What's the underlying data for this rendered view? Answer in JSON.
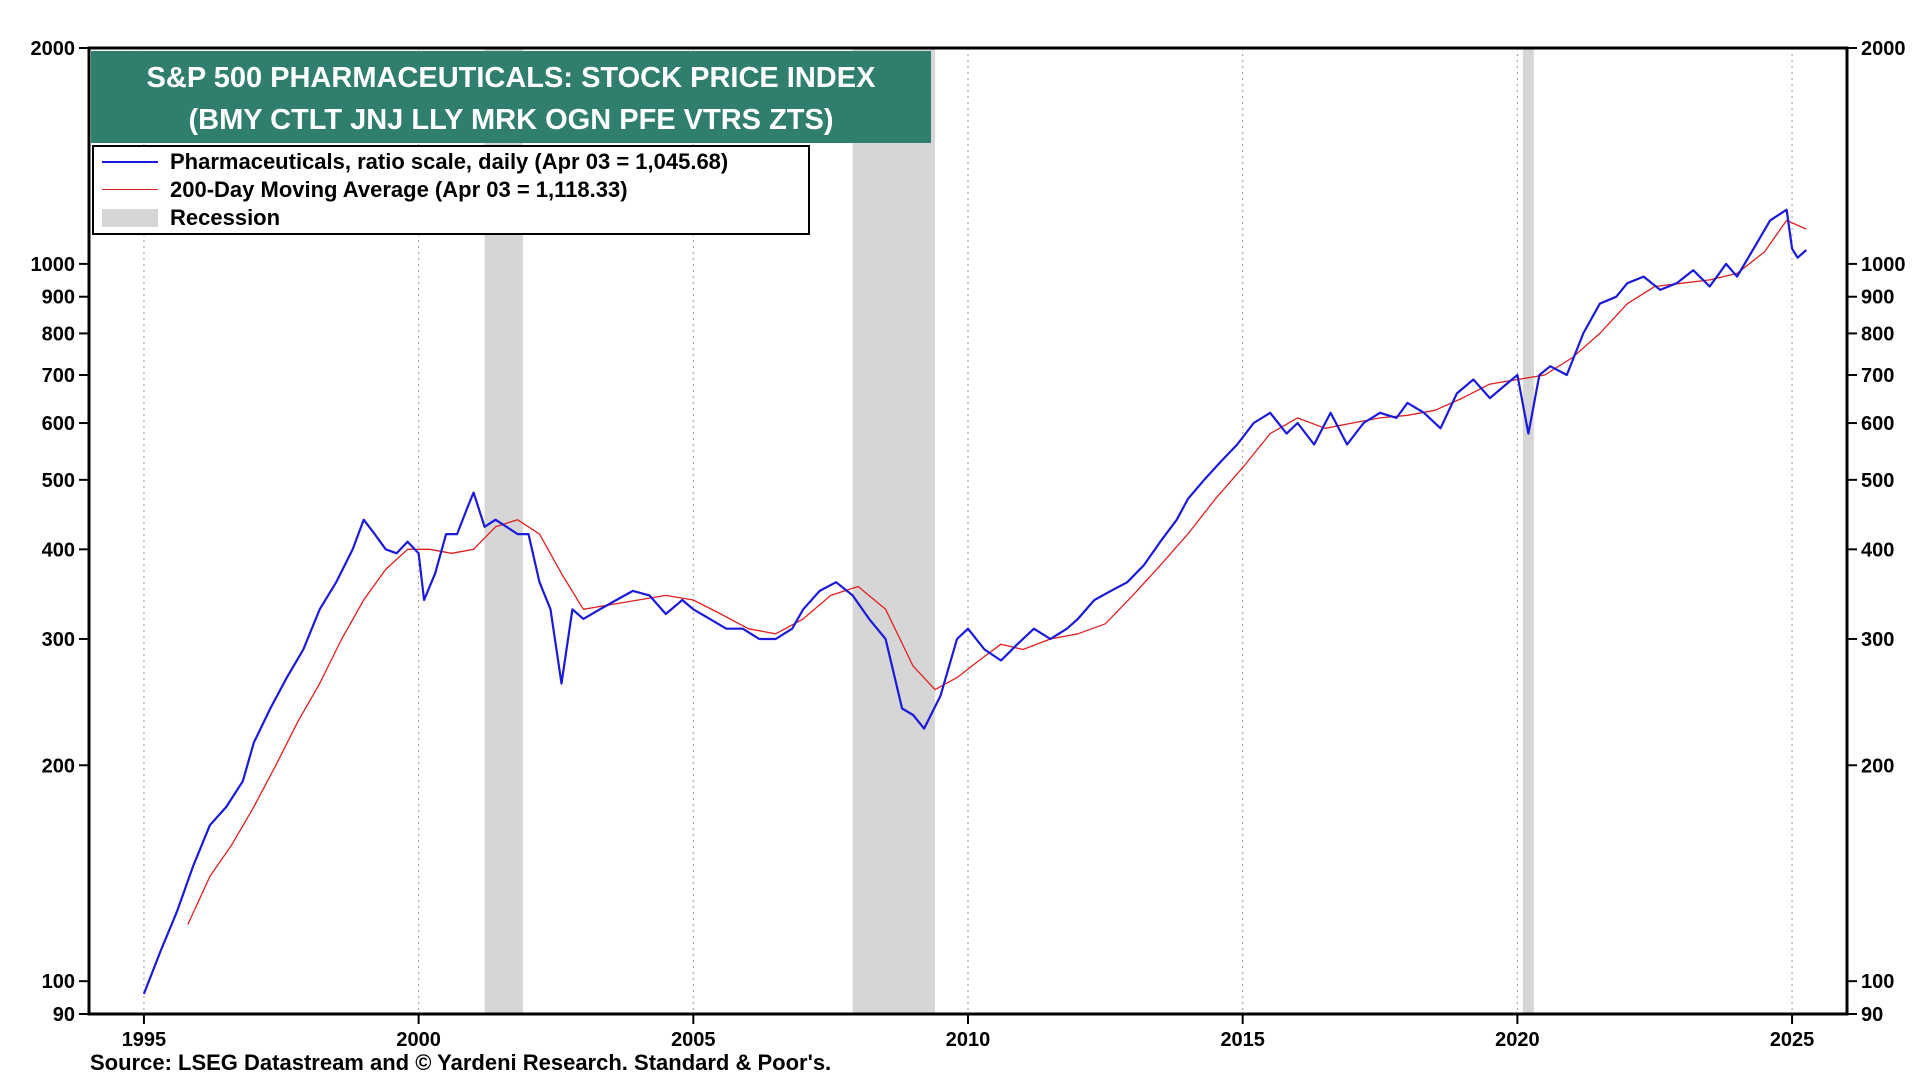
{
  "title_line1": "S&P 500 PHARMACEUTICALS: STOCK PRICE INDEX",
  "title_line2": "(BMY CTLT JNJ LLY MRK OGN PFE VTRS ZTS)",
  "source": "Source: LSEG Datastream and © Yardeni Research. Standard & Poor's.",
  "colors": {
    "title_bg": "#2f7e6e",
    "pharma": "#1a1adc",
    "ma": "#e02020",
    "recession": "#d6d6d6"
  },
  "chart_data": {
    "type": "line",
    "yscale": "log",
    "ylim": [
      90,
      2000
    ],
    "xlim": [
      1994.0,
      2026.0
    ],
    "y_ticks": [
      90,
      100,
      200,
      300,
      400,
      500,
      600,
      700,
      800,
      900,
      1000,
      2000
    ],
    "y_tick_labels": [
      "90",
      "100",
      "200",
      "300",
      "400",
      "500",
      "600",
      "700",
      "800",
      "900",
      "1000",
      "2000"
    ],
    "x_ticks": [
      1995,
      2000,
      2005,
      2010,
      2015,
      2020,
      2025
    ],
    "x_tick_labels": [
      "1995",
      "2000",
      "2005",
      "2010",
      "2015",
      "2020",
      "2025"
    ],
    "grid": "vertical dotted at x ticks",
    "legend": [
      "Pharmaceuticals, ratio scale, daily (Apr 03 = 1,045.68)",
      "200-Day Moving Average (Apr 03 = 1,118.33)",
      "Recession"
    ],
    "legend_placement": "top-left",
    "recessions": [
      [
        2001.2,
        2001.9
      ],
      [
        2007.9,
        2009.4
      ],
      [
        2020.1,
        2020.3
      ]
    ],
    "series": [
      {
        "name": "Pharmaceuticals, ratio scale, daily (Apr 03 = 1,045.68)",
        "x": [
          1995.0,
          1995.3,
          1995.6,
          1995.9,
          1996.2,
          1996.5,
          1996.8,
          1997.0,
          1997.3,
          1997.6,
          1997.9,
          1998.2,
          1998.5,
          1998.8,
          1999.0,
          1999.2,
          1999.4,
          1999.6,
          1999.8,
          2000.0,
          2000.1,
          2000.3,
          2000.5,
          2000.7,
          2000.9,
          2001.0,
          2001.2,
          2001.4,
          2001.6,
          2001.8,
          2002.0,
          2002.2,
          2002.4,
          2002.6,
          2002.8,
          2003.0,
          2003.3,
          2003.6,
          2003.9,
          2004.2,
          2004.5,
          2004.8,
          2005.0,
          2005.3,
          2005.6,
          2005.9,
          2006.2,
          2006.5,
          2006.8,
          2007.0,
          2007.3,
          2007.6,
          2007.9,
          2008.2,
          2008.5,
          2008.8,
          2009.0,
          2009.2,
          2009.5,
          2009.8,
          2010.0,
          2010.3,
          2010.6,
          2010.9,
          2011.2,
          2011.5,
          2011.8,
          2012.0,
          2012.3,
          2012.6,
          2012.9,
          2013.2,
          2013.5,
          2013.8,
          2014.0,
          2014.3,
          2014.6,
          2014.9,
          2015.2,
          2015.5,
          2015.8,
          2016.0,
          2016.3,
          2016.6,
          2016.9,
          2017.2,
          2017.5,
          2017.8,
          2018.0,
          2018.3,
          2018.6,
          2018.9,
          2019.2,
          2019.5,
          2019.8,
          2020.0,
          2020.2,
          2020.4,
          2020.6,
          2020.9,
          2021.2,
          2021.5,
          2021.8,
          2022.0,
          2022.3,
          2022.6,
          2022.9,
          2023.2,
          2023.5,
          2023.8,
          2024.0,
          2024.3,
          2024.6,
          2024.9,
          2025.0,
          2025.1,
          2025.26
        ],
        "values": [
          96,
          110,
          125,
          145,
          165,
          175,
          190,
          215,
          240,
          265,
          290,
          330,
          360,
          400,
          440,
          420,
          400,
          395,
          410,
          395,
          340,
          370,
          420,
          420,
          460,
          480,
          430,
          440,
          430,
          420,
          420,
          360,
          330,
          260,
          330,
          320,
          330,
          340,
          350,
          345,
          325,
          340,
          330,
          320,
          310,
          310,
          300,
          300,
          310,
          330,
          350,
          360,
          345,
          320,
          300,
          240,
          235,
          225,
          250,
          300,
          310,
          290,
          280,
          295,
          310,
          300,
          310,
          320,
          340,
          350,
          360,
          380,
          410,
          440,
          470,
          500,
          530,
          560,
          600,
          620,
          580,
          600,
          560,
          620,
          560,
          600,
          620,
          610,
          640,
          620,
          590,
          660,
          690,
          650,
          680,
          700,
          580,
          700,
          720,
          700,
          800,
          880,
          900,
          940,
          960,
          920,
          940,
          980,
          930,
          1000,
          960,
          1050,
          1150,
          1190,
          1050,
          1020,
          1045.68
        ]
      },
      {
        "name": "200-Day Moving Average (Apr 03 = 1,118.33)",
        "x": [
          1995.8,
          1996.2,
          1996.6,
          1997.0,
          1997.4,
          1997.8,
          1998.2,
          1998.6,
          1999.0,
          1999.4,
          1999.8,
          2000.2,
          2000.6,
          2001.0,
          2001.4,
          2001.8,
          2002.2,
          2002.6,
          2003.0,
          2003.5,
          2004.0,
          2004.5,
          2005.0,
          2005.5,
          2006.0,
          2006.5,
          2007.0,
          2007.5,
          2008.0,
          2008.5,
          2009.0,
          2009.4,
          2009.8,
          2010.2,
          2010.6,
          2011.0,
          2011.5,
          2012.0,
          2012.5,
          2013.0,
          2013.5,
          2014.0,
          2014.5,
          2015.0,
          2015.5,
          2016.0,
          2016.5,
          2017.0,
          2017.5,
          2018.0,
          2018.5,
          2019.0,
          2019.5,
          2020.0,
          2020.5,
          2021.0,
          2021.5,
          2022.0,
          2022.5,
          2023.0,
          2023.5,
          2024.0,
          2024.5,
          2024.9,
          2025.26
        ],
        "values": [
          120,
          140,
          155,
          175,
          200,
          230,
          260,
          300,
          340,
          375,
          400,
          400,
          395,
          400,
          430,
          440,
          420,
          370,
          330,
          335,
          340,
          345,
          340,
          325,
          310,
          305,
          320,
          345,
          355,
          330,
          275,
          255,
          265,
          280,
          295,
          290,
          300,
          305,
          315,
          345,
          380,
          420,
          470,
          520,
          580,
          610,
          590,
          600,
          610,
          615,
          625,
          650,
          680,
          690,
          700,
          740,
          800,
          880,
          930,
          940,
          950,
          970,
          1040,
          1150,
          1118.33
        ]
      }
    ]
  }
}
